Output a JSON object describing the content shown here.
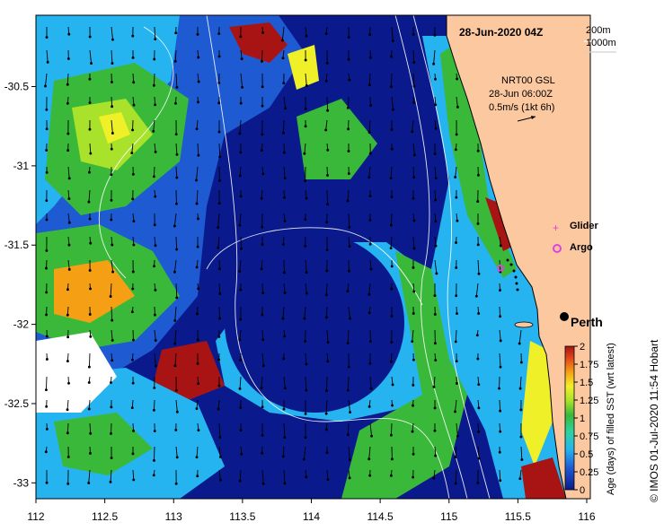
{
  "title": "28-Jun-2020 04Z",
  "depth_legend": [
    "200m",
    "1000m"
  ],
  "current_info": {
    "source": "NRT00 GSL",
    "time": "28-Jun 06:00Z",
    "scale_label": "0.5m/s (1kt 6h)"
  },
  "symbols_legend": [
    {
      "label": "Glider",
      "color": "#e040e0",
      "marker": "plus"
    },
    {
      "label": "Argo",
      "color": "#e040e0",
      "marker": "circle"
    }
  ],
  "place": {
    "name": "Perth",
    "lon": 115.86,
    "lat": -31.95
  },
  "colorbar": {
    "label": "Age (days) of filled SST (wrt latest)",
    "ticks": [
      "0",
      "0.25",
      "0.5",
      "0.75",
      "1",
      "1.25",
      "1.5",
      "1.75",
      "2"
    ],
    "colors": [
      "#0a1a8c",
      "#1e5ad2",
      "#25b4f0",
      "#2ed3a0",
      "#3ab83a",
      "#a8e22a",
      "#f0f028",
      "#f5a014",
      "#e0441a",
      "#a81414"
    ]
  },
  "credit": "© IMOS 01-Jul-2020 11:54 Hobart",
  "axes": {
    "x_ticks": [
      "112",
      "112.5",
      "113",
      "113.5",
      "114",
      "114.5",
      "115",
      "115.5",
      "116"
    ],
    "y_ticks": [
      "-30.5",
      "-31",
      "-31.5",
      "-32",
      "-32.5",
      "-33"
    ],
    "xlim": [
      112,
      116
    ],
    "ylim": [
      -33.1,
      -30.05
    ]
  }
}
